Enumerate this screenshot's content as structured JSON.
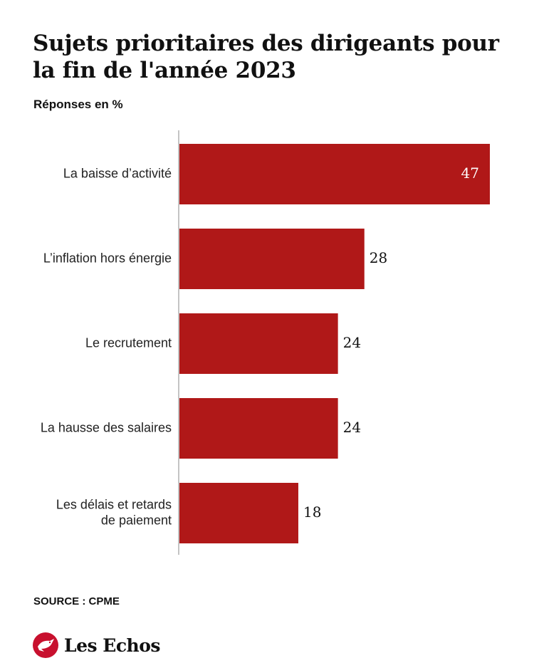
{
  "header": {
    "title": "Sujets prioritaires des dirigeants pour la fin de l'année 2023",
    "subtitle": "Réponses en %"
  },
  "footer": {
    "source": "SOURCE : CPME",
    "brand": "Les Echos",
    "brand_icon": "les-echos-bird-logo"
  },
  "colors": {
    "bar": "#b01818",
    "axis": "#888888",
    "logo": "#c8102e"
  },
  "chart_data": {
    "type": "bar",
    "orientation": "horizontal",
    "title": "Sujets prioritaires des dirigeants pour la fin de l'année 2023",
    "subtitle": "Réponses en %",
    "categories": [
      [
        "La baisse d’activité"
      ],
      [
        "L’inflation hors énergie"
      ],
      [
        "Le recrutement"
      ],
      [
        "La hausse des salaires"
      ],
      [
        "Les délais et retards",
        "de paiement"
      ]
    ],
    "values": [
      47,
      28,
      24,
      24,
      18
    ],
    "xlim": [
      0,
      47
    ],
    "grid": false,
    "legend": "none",
    "source": "SOURCE : CPME"
  }
}
